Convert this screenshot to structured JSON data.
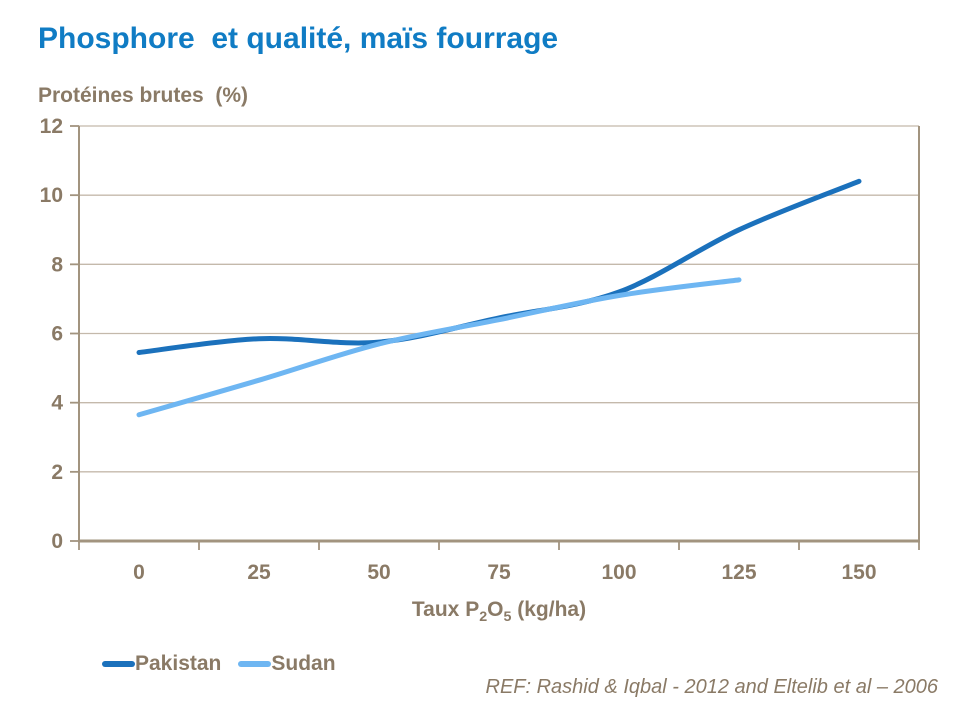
{
  "page": {
    "background": "#ffffff"
  },
  "style": {
    "title_color": "#107CC4",
    "text_color": "#8A7A66"
  },
  "chart_data": {
    "type": "line",
    "title": "Phosphore  et qualité, maïs fourrage",
    "ylabel": "Protéines brutes  (%)",
    "xlabel": "Taux P2O5 (kg/ha)",
    "xlabel_parts": [
      "Taux P",
      "2",
      "O",
      "5",
      " (kg/ha)"
    ],
    "categories": [
      0,
      25,
      50,
      75,
      100,
      125,
      150
    ],
    "series": [
      {
        "name": "Pakistan",
        "color": "#1B71BC",
        "values": [
          5.45,
          5.85,
          5.75,
          6.45,
          7.2,
          9.0,
          10.4
        ]
      },
      {
        "name": "Sudan",
        "color": "#6EB6F2",
        "values": [
          3.65,
          4.65,
          5.7,
          6.4,
          7.1,
          7.55
        ]
      }
    ],
    "ylim": [
      0,
      12
    ],
    "ytick_step": 2,
    "grid": "horizontal",
    "legend_position": "bottom-left",
    "axis_color": "#A2947F",
    "grid_color": "#C4B9AB",
    "label_color": "#8A7A66",
    "reference": "REF: Rashid & Iqbal - 2012 and Eltelib et al – 2006"
  }
}
